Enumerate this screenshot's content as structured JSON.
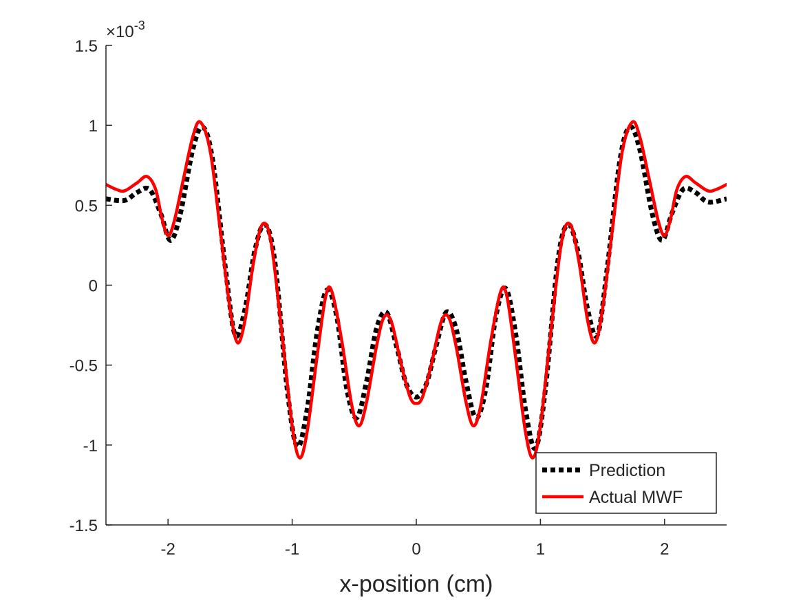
{
  "chart_data": {
    "type": "line",
    "xlabel": "x-position (cm)",
    "ylabel": "",
    "xlim": [
      -2.5,
      2.5
    ],
    "ylim": [
      -1.5,
      1.5
    ],
    "y_exponent_label": "×10^-3",
    "y_exponent_base": "×10",
    "y_exponent_power": "-3",
    "x_ticks": [
      -2,
      -1,
      0,
      1,
      2
    ],
    "x_tick_labels": [
      "-2",
      "-1",
      "0",
      "1",
      "2"
    ],
    "y_ticks": [
      -1.5,
      -1,
      -0.5,
      0,
      0.5,
      1,
      1.5
    ],
    "y_tick_labels": [
      "-1.5",
      "-1",
      "-0.5",
      "0",
      "0.5",
      "1",
      "1.5"
    ],
    "grid": false,
    "legend_position": "bottom-right",
    "series": [
      {
        "name": "Prediction",
        "color": "#000000",
        "style": "dotted",
        "points": [
          [
            -2.5,
            0.54
          ],
          [
            -2.35,
            0.53
          ],
          [
            -2.25,
            0.58
          ],
          [
            -2.15,
            0.6
          ],
          [
            -2.06,
            0.45
          ],
          [
            -1.98,
            0.28
          ],
          [
            -1.9,
            0.45
          ],
          [
            -1.8,
            0.85
          ],
          [
            -1.72,
            0.99
          ],
          [
            -1.64,
            0.78
          ],
          [
            -1.54,
            0.12
          ],
          [
            -1.46,
            -0.31
          ],
          [
            -1.38,
            -0.15
          ],
          [
            -1.3,
            0.22
          ],
          [
            -1.22,
            0.38
          ],
          [
            -1.14,
            0.15
          ],
          [
            -1.04,
            -0.65
          ],
          [
            -0.96,
            -1.01
          ],
          [
            -0.88,
            -0.78
          ],
          [
            -0.8,
            -0.3
          ],
          [
            -0.72,
            -0.03
          ],
          [
            -0.64,
            -0.2
          ],
          [
            -0.56,
            -0.65
          ],
          [
            -0.48,
            -0.83
          ],
          [
            -0.4,
            -0.6
          ],
          [
            -0.32,
            -0.27
          ],
          [
            -0.24,
            -0.17
          ],
          [
            -0.16,
            -0.38
          ],
          [
            -0.08,
            -0.62
          ],
          [
            0,
            -0.7
          ],
          [
            0.08,
            -0.62
          ],
          [
            0.16,
            -0.38
          ],
          [
            0.24,
            -0.17
          ],
          [
            0.32,
            -0.27
          ],
          [
            0.4,
            -0.6
          ],
          [
            0.48,
            -0.83
          ],
          [
            0.56,
            -0.65
          ],
          [
            0.64,
            -0.2
          ],
          [
            0.72,
            -0.02
          ],
          [
            0.8,
            -0.3
          ],
          [
            0.88,
            -0.78
          ],
          [
            0.96,
            -1.02
          ],
          [
            1.04,
            -0.65
          ],
          [
            1.14,
            0.15
          ],
          [
            1.22,
            0.38
          ],
          [
            1.3,
            0.22
          ],
          [
            1.38,
            -0.15
          ],
          [
            1.46,
            -0.31
          ],
          [
            1.54,
            0.12
          ],
          [
            1.64,
            0.78
          ],
          [
            1.72,
            0.99
          ],
          [
            1.8,
            0.85
          ],
          [
            1.9,
            0.45
          ],
          [
            1.98,
            0.28
          ],
          [
            2.06,
            0.45
          ],
          [
            2.15,
            0.6
          ],
          [
            2.25,
            0.58
          ],
          [
            2.35,
            0.52
          ],
          [
            2.5,
            0.54
          ]
        ]
      },
      {
        "name": "Actual MWF",
        "color": "#ff0000",
        "style": "solid",
        "points": [
          [
            -2.5,
            0.63
          ],
          [
            -2.42,
            0.6
          ],
          [
            -2.35,
            0.59
          ],
          [
            -2.25,
            0.64
          ],
          [
            -2.17,
            0.68
          ],
          [
            -2.1,
            0.6
          ],
          [
            -2.05,
            0.42
          ],
          [
            -2.0,
            0.31
          ],
          [
            -1.95,
            0.4
          ],
          [
            -1.88,
            0.65
          ],
          [
            -1.8,
            0.93
          ],
          [
            -1.74,
            1.02
          ],
          [
            -1.66,
            0.84
          ],
          [
            -1.58,
            0.35
          ],
          [
            -1.5,
            -0.15
          ],
          [
            -1.44,
            -0.36
          ],
          [
            -1.38,
            -0.22
          ],
          [
            -1.31,
            0.15
          ],
          [
            -1.24,
            0.38
          ],
          [
            -1.17,
            0.27
          ],
          [
            -1.08,
            -0.32
          ],
          [
            -1.0,
            -0.88
          ],
          [
            -0.94,
            -1.08
          ],
          [
            -0.88,
            -0.92
          ],
          [
            -0.8,
            -0.45
          ],
          [
            -0.73,
            -0.07
          ],
          [
            -0.68,
            -0.04
          ],
          [
            -0.6,
            -0.35
          ],
          [
            -0.52,
            -0.75
          ],
          [
            -0.46,
            -0.88
          ],
          [
            -0.4,
            -0.73
          ],
          [
            -0.32,
            -0.38
          ],
          [
            -0.26,
            -0.2
          ],
          [
            -0.2,
            -0.23
          ],
          [
            -0.12,
            -0.5
          ],
          [
            -0.05,
            -0.7
          ],
          [
            0,
            -0.74
          ],
          [
            0.05,
            -0.7
          ],
          [
            0.12,
            -0.5
          ],
          [
            0.2,
            -0.23
          ],
          [
            0.26,
            -0.2
          ],
          [
            0.32,
            -0.38
          ],
          [
            0.4,
            -0.73
          ],
          [
            0.46,
            -0.88
          ],
          [
            0.52,
            -0.75
          ],
          [
            0.6,
            -0.35
          ],
          [
            0.68,
            -0.04
          ],
          [
            0.73,
            -0.07
          ],
          [
            0.8,
            -0.45
          ],
          [
            0.88,
            -0.92
          ],
          [
            0.94,
            -1.08
          ],
          [
            1.0,
            -0.88
          ],
          [
            1.08,
            -0.32
          ],
          [
            1.17,
            0.27
          ],
          [
            1.24,
            0.38
          ],
          [
            1.31,
            0.15
          ],
          [
            1.38,
            -0.22
          ],
          [
            1.44,
            -0.36
          ],
          [
            1.5,
            -0.15
          ],
          [
            1.58,
            0.35
          ],
          [
            1.66,
            0.84
          ],
          [
            1.74,
            1.02
          ],
          [
            1.8,
            0.93
          ],
          [
            1.88,
            0.65
          ],
          [
            1.95,
            0.4
          ],
          [
            2.0,
            0.31
          ],
          [
            2.05,
            0.42
          ],
          [
            2.1,
            0.6
          ],
          [
            2.17,
            0.68
          ],
          [
            2.25,
            0.64
          ],
          [
            2.35,
            0.59
          ],
          [
            2.42,
            0.6
          ],
          [
            2.5,
            0.63
          ]
        ]
      }
    ]
  }
}
